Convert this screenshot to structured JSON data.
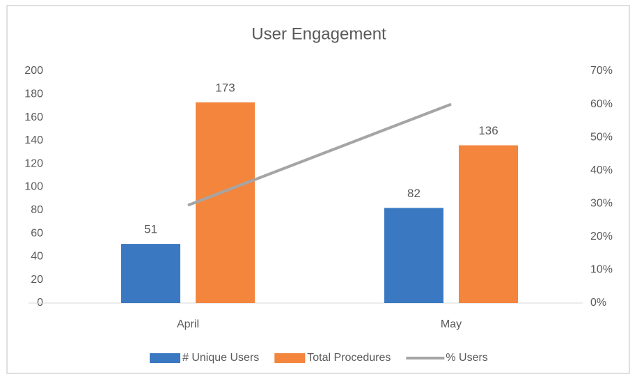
{
  "chart_data": {
    "type": "bar",
    "title": "User Engagement",
    "categories": [
      "April",
      "May"
    ],
    "series": [
      {
        "name": "# Unique Users",
        "color": "#3a78c2",
        "values": [
          51,
          82
        ]
      },
      {
        "name": "Total Procedures",
        "color": "#f4853d",
        "values": [
          173,
          136
        ]
      },
      {
        "name": "% Users",
        "color": "#a5a5a5",
        "type": "line",
        "axis": "y2",
        "values": [
          29.5,
          60
        ]
      }
    ],
    "ylim": [
      0,
      200
    ],
    "yticks": [
      0,
      20,
      40,
      60,
      80,
      100,
      120,
      140,
      160,
      180,
      200
    ],
    "y2lim": [
      0,
      70
    ],
    "y2ticks": [
      {
        "value": 0,
        "label": "0%"
      },
      {
        "value": 10,
        "label": "10%"
      },
      {
        "value": 20,
        "label": "20%"
      },
      {
        "value": 30,
        "label": "30%"
      },
      {
        "value": 40,
        "label": "40%"
      },
      {
        "value": 50,
        "label": "50%"
      },
      {
        "value": 60,
        "label": "60%"
      },
      {
        "value": 70,
        "label": "70%"
      }
    ],
    "grid": false,
    "legend": "bottom"
  }
}
